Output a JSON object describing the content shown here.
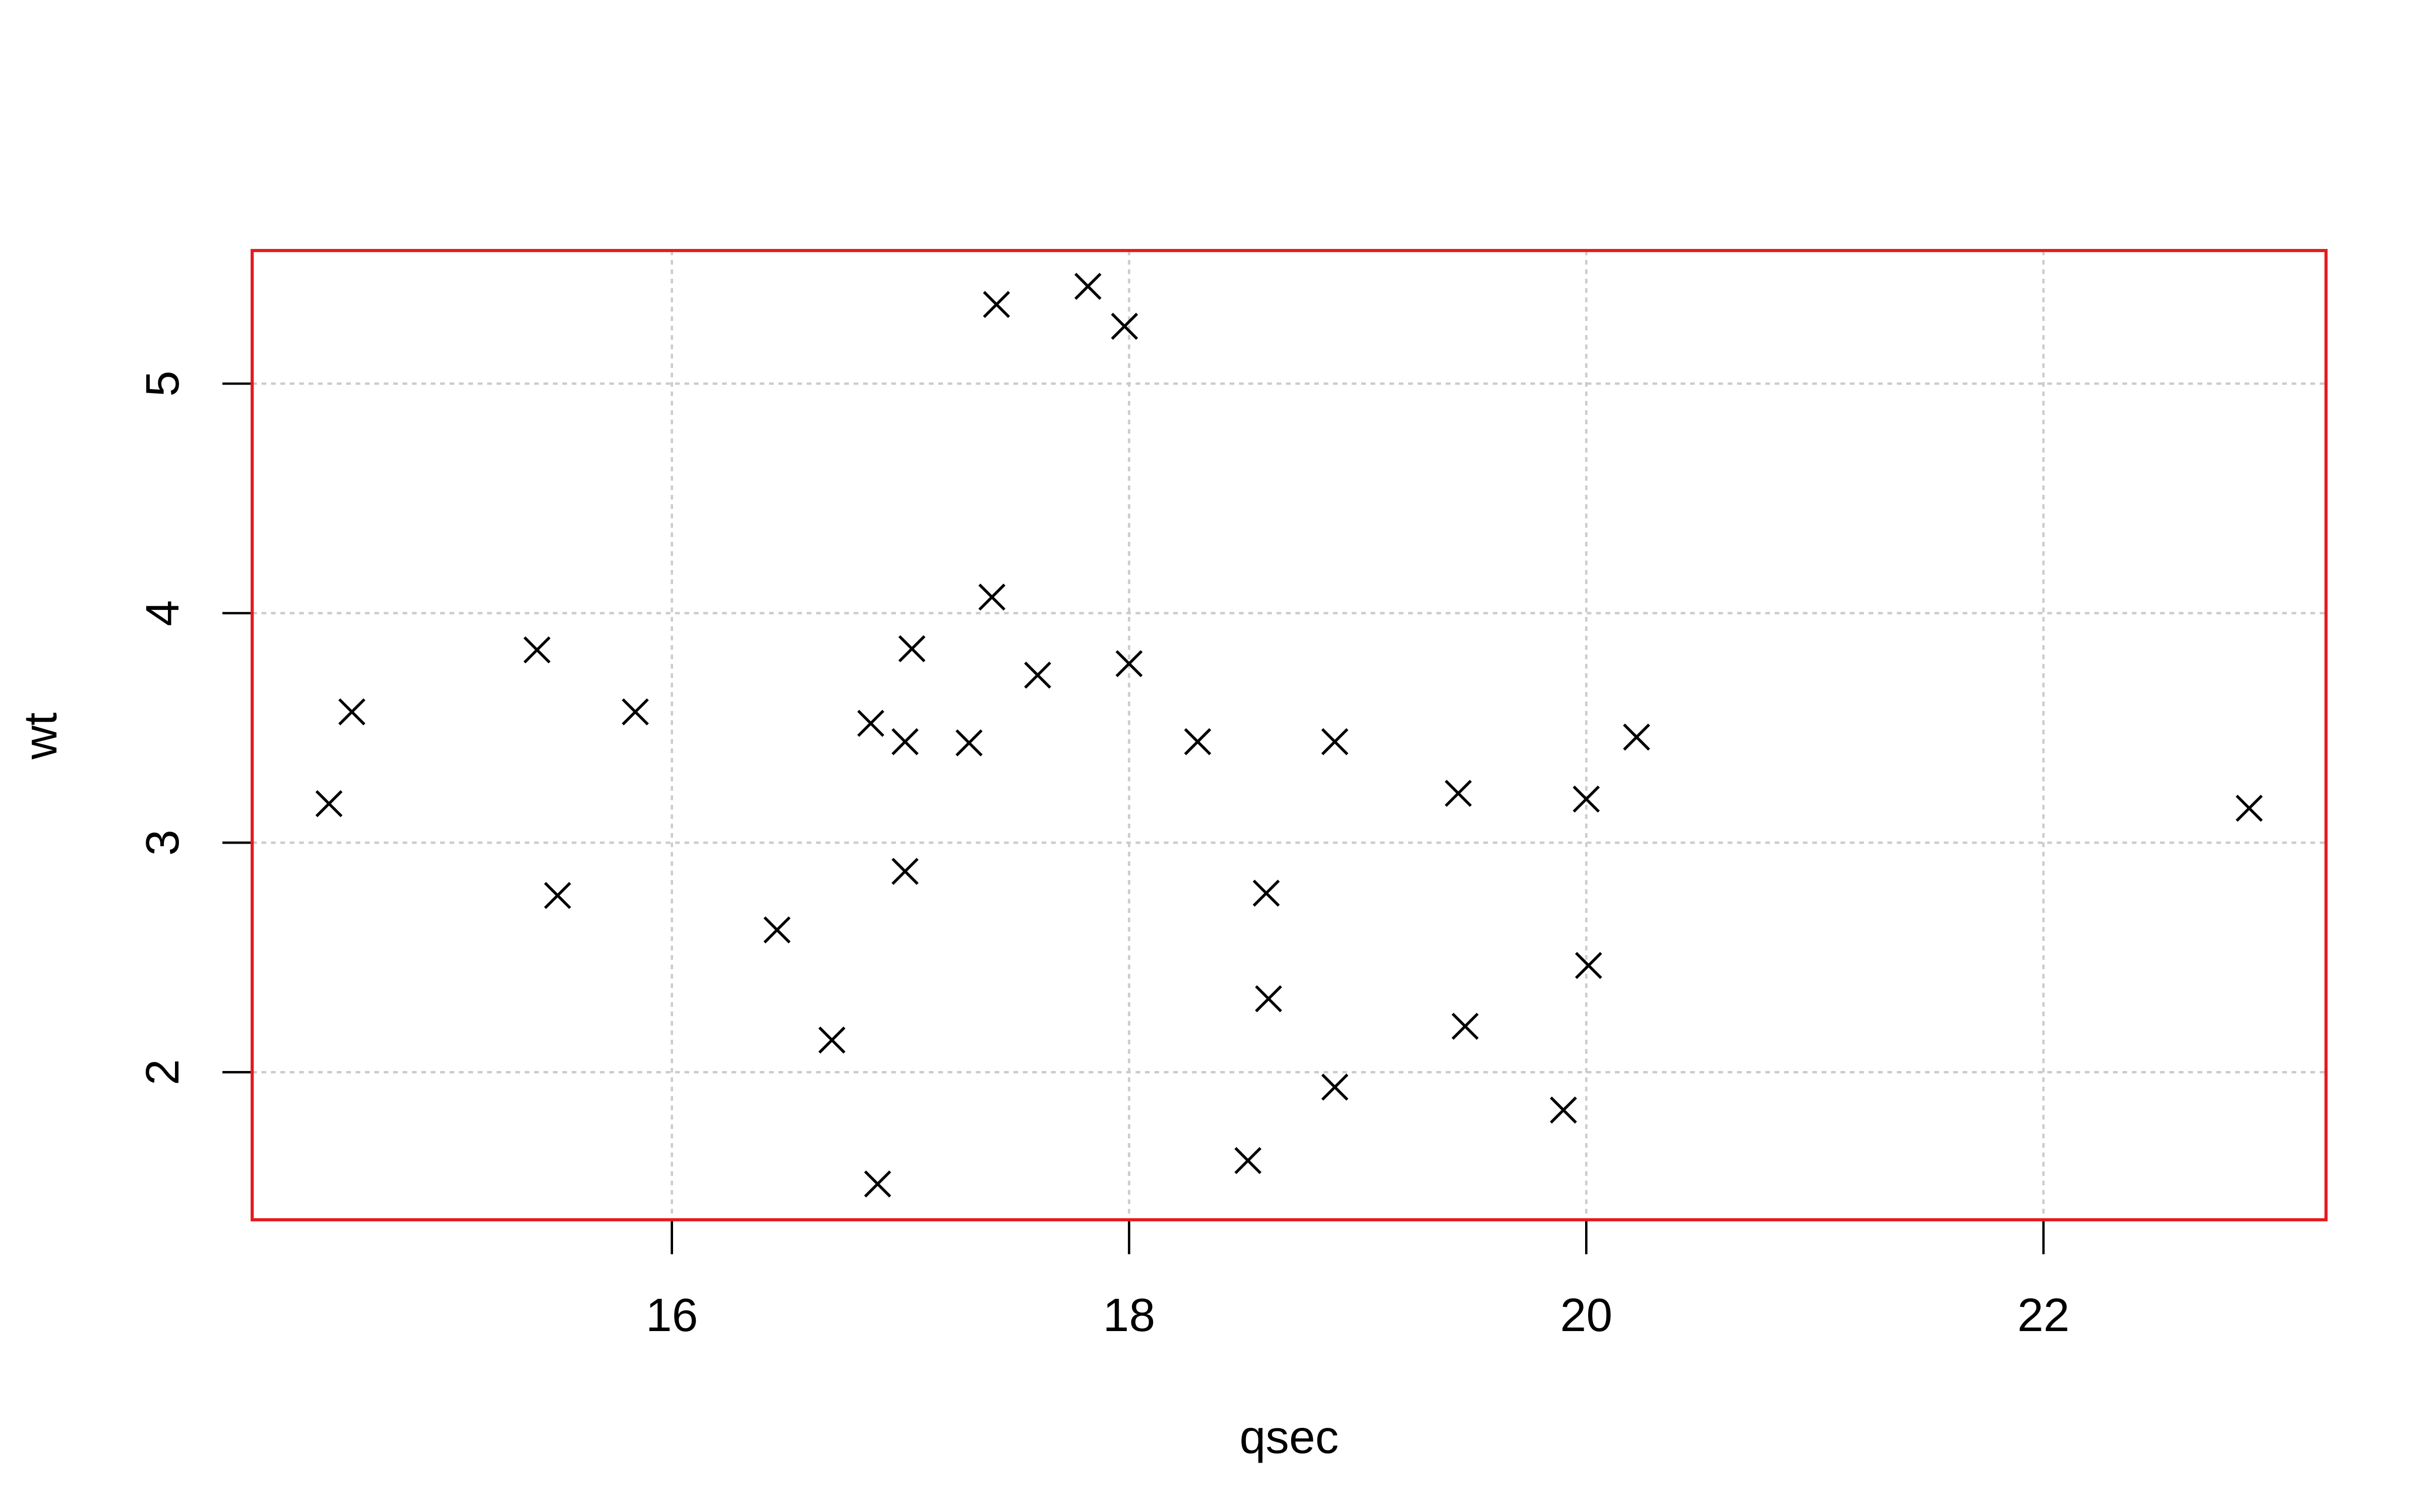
{
  "chart_data": {
    "type": "scatter",
    "xlabel": "qsec",
    "ylabel": "wt",
    "x": [
      16.46,
      17.02,
      18.61,
      19.44,
      17.02,
      20.22,
      15.84,
      20.0,
      22.9,
      18.3,
      18.9,
      17.4,
      17.6,
      18.0,
      17.98,
      17.82,
      17.42,
      19.47,
      18.52,
      19.9,
      20.01,
      16.87,
      17.3,
      15.41,
      17.05,
      18.9,
      16.7,
      16.9,
      14.5,
      15.5,
      14.6,
      18.6
    ],
    "values": [
      2.62,
      2.875,
      2.32,
      3.215,
      3.44,
      3.46,
      3.57,
      3.19,
      3.15,
      3.44,
      3.44,
      4.07,
      3.73,
      3.78,
      5.25,
      5.424,
      5.345,
      2.2,
      1.615,
      1.835,
      2.465,
      3.52,
      3.435,
      3.84,
      3.845,
      1.935,
      2.14,
      1.513,
      3.17,
      2.77,
      3.57,
      2.78
    ],
    "color": "#000000",
    "frame_color": "#e41a1c",
    "xlim": [
      14.164,
      23.236
    ],
    "ylim": [
      1.357,
      5.58
    ],
    "xticks": [
      16,
      18,
      20,
      22
    ],
    "yticks": [
      2,
      3,
      4,
      5
    ],
    "grid": true
  }
}
